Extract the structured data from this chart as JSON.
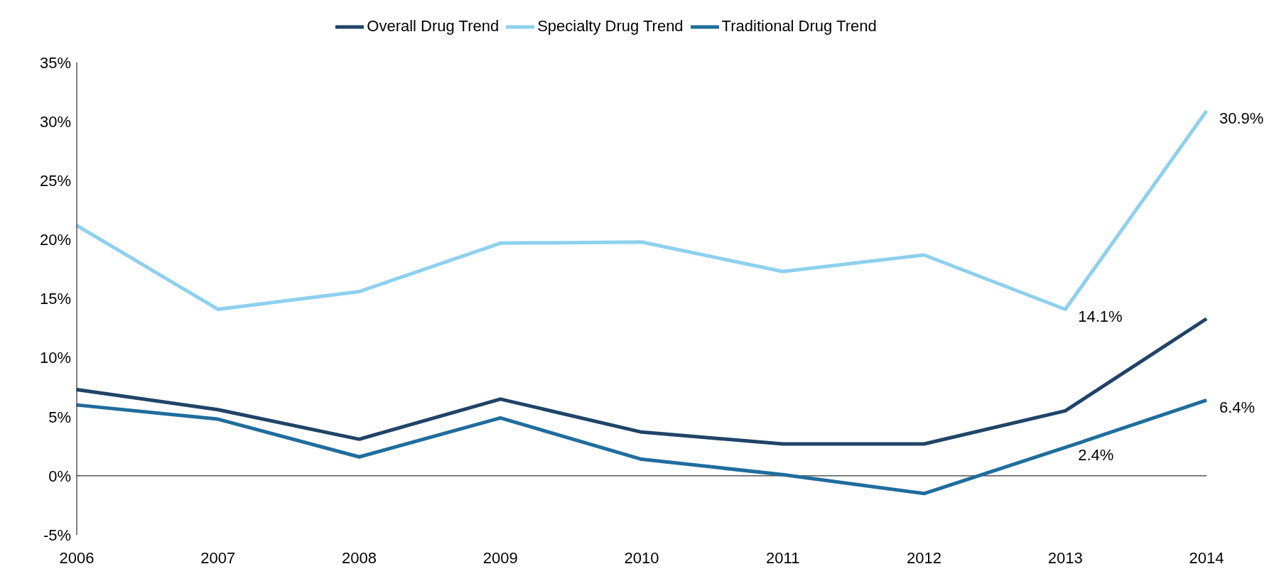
{
  "chart_data": {
    "type": "line",
    "categories": [
      "2006",
      "2007",
      "2008",
      "2009",
      "2010",
      "2011",
      "2012",
      "2013",
      "2014"
    ],
    "series": [
      {
        "name": "Specialty Drug Trend",
        "color": "#8dd0ef",
        "values": [
          21.2,
          14.1,
          15.6,
          19.7,
          19.8,
          17.3,
          18.7,
          14.1,
          30.9
        ],
        "value_labels": [
          null,
          null,
          null,
          null,
          null,
          null,
          null,
          "14.1%",
          "30.9%"
        ]
      },
      {
        "name": "Traditional Drug Trend",
        "color": "#1f6d9e",
        "values": [
          6.0,
          4.8,
          1.6,
          4.9,
          1.4,
          0.1,
          -1.5,
          2.4,
          6.4
        ],
        "value_labels": [
          null,
          null,
          null,
          null,
          null,
          null,
          null,
          "2.4%",
          "6.4%"
        ]
      },
      {
        "name": "Overall Drug Trend",
        "color": "#1f4467",
        "values": [
          7.3,
          5.6,
          3.1,
          6.5,
          3.7,
          2.7,
          2.7,
          5.5,
          13.3
        ]
      }
    ],
    "ylim": [
      -5,
      35
    ],
    "yticks": [
      {
        "value": -5,
        "label": "-5%"
      },
      {
        "value": 0,
        "label": "0%"
      },
      {
        "value": 5,
        "label": "5%"
      },
      {
        "value": 10,
        "label": "10%"
      },
      {
        "value": 15,
        "label": "15%"
      },
      {
        "value": 20,
        "label": "20%"
      },
      {
        "value": 25,
        "label": "25%"
      },
      {
        "value": 30,
        "label": "30%"
      },
      {
        "value": 35,
        "label": "35%"
      }
    ],
    "ref_lines": [
      {
        "axis": "y",
        "value": 0,
        "color": "#000000"
      }
    ],
    "grid": false,
    "legend": "top",
    "marker": "none",
    "line_style": "solid"
  }
}
